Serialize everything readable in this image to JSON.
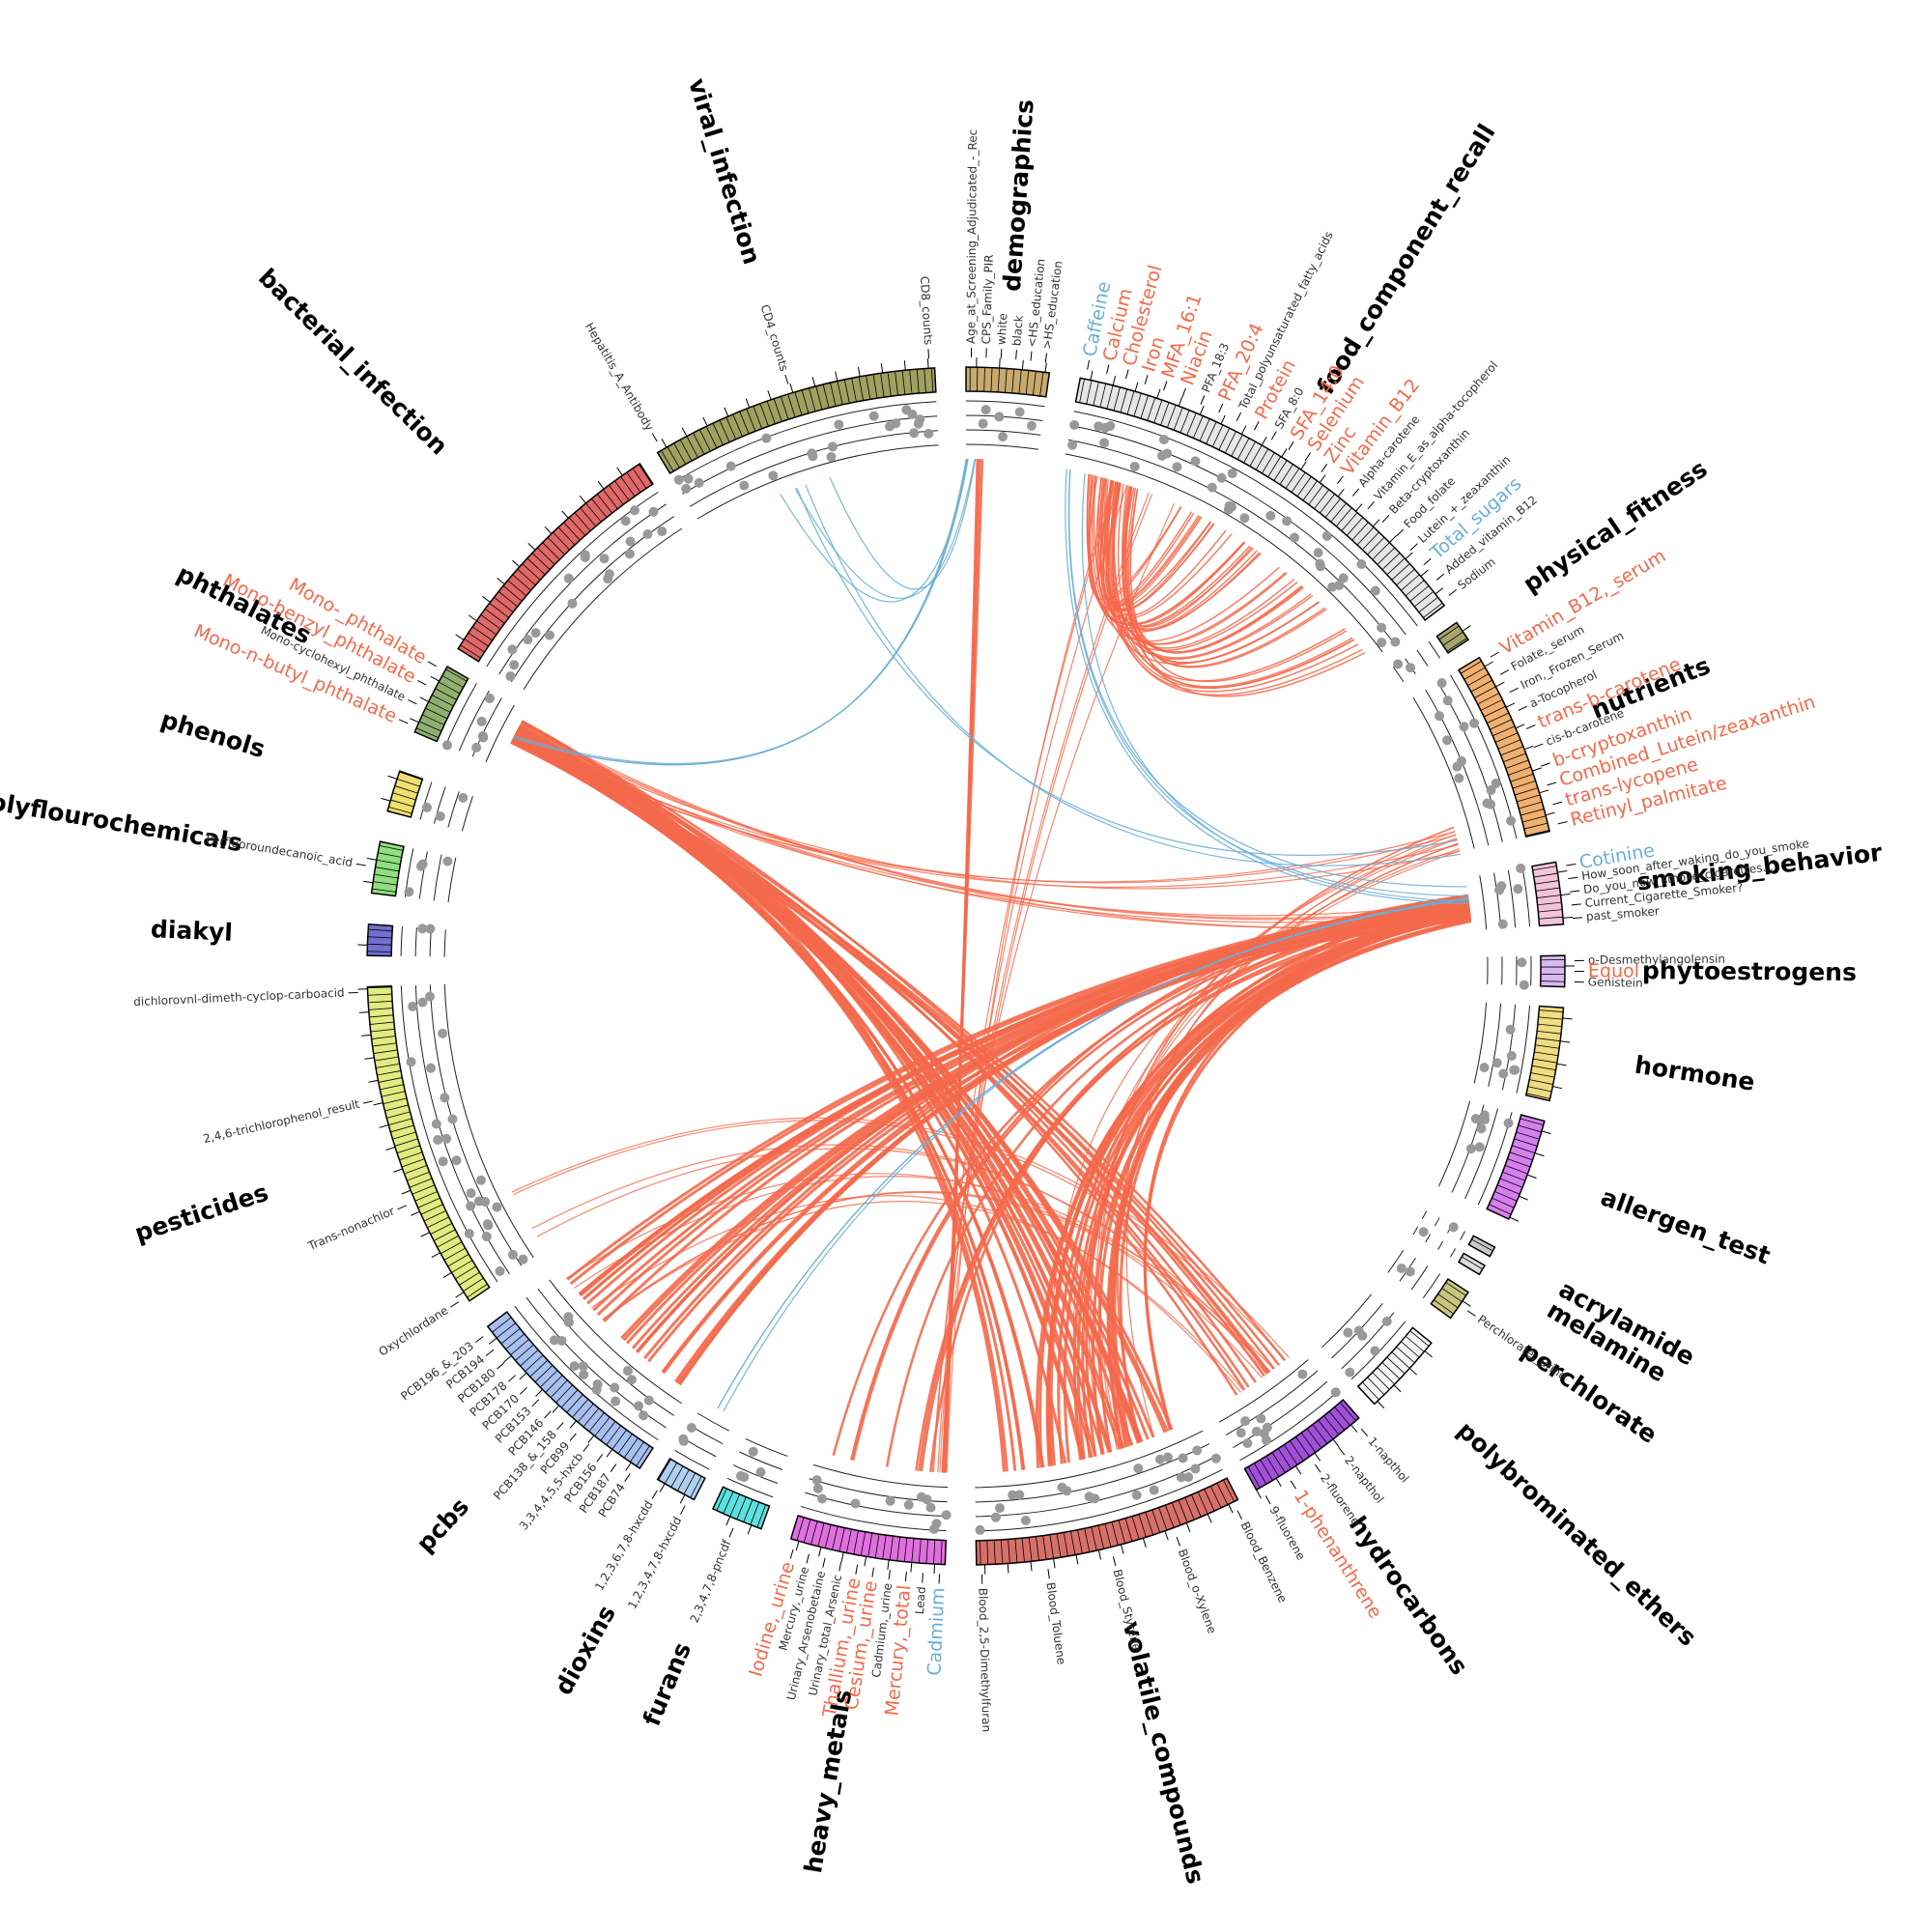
{
  "sectors": [
    {
      "name": "demographics",
      "color": "#c8a96e",
      "labels": [
        {
          "text": "Age_at_Screening_Adjudicated_-_Rec",
          "color": "#333333"
        },
        {
          "text": "CPS_Family_PIR",
          "color": "#333333"
        },
        {
          "text": "white",
          "color": "#333333"
        },
        {
          "text": "black",
          "color": "#333333"
        },
        {
          "text": "<HS_education",
          "color": "#333333"
        },
        {
          "text": ">HS_education",
          "color": "#333333"
        }
      ]
    },
    {
      "name": "food_component_recall",
      "color": "#e6e6e6",
      "labels": [
        {
          "text": "Caffeine",
          "color": "#6baed6"
        },
        {
          "text": "Calcium",
          "color": "#f4694b"
        },
        {
          "text": "Cholesterol",
          "color": "#f4694b"
        },
        {
          "text": "Iron",
          "color": "#f4694b"
        },
        {
          "text": "MFA_16:1",
          "color": "#f4694b"
        },
        {
          "text": "Niacin",
          "color": "#f4694b"
        },
        {
          "text": "PFA_18:3",
          "color": "#333333"
        },
        {
          "text": "PFA_20:4",
          "color": "#f4694b"
        },
        {
          "text": "Total_polyunsaturated_fatty_acids",
          "color": "#333333"
        },
        {
          "text": "Protein",
          "color": "#f4694b"
        },
        {
          "text": "SFA_8:0",
          "color": "#333333"
        },
        {
          "text": "SFA_14:0",
          "color": "#f4694b"
        },
        {
          "text": "Selenium",
          "color": "#f4694b"
        },
        {
          "text": "Zinc",
          "color": "#f4694b"
        },
        {
          "text": "Vitamin_B12",
          "color": "#f4694b"
        },
        {
          "text": "Alpha-carotene",
          "color": "#333333"
        },
        {
          "text": "Vitamin_E_as_alpha-tocopherol",
          "color": "#333333"
        },
        {
          "text": "Beta-cryptoxanthin",
          "color": "#333333"
        },
        {
          "text": "Food_folate",
          "color": "#333333"
        },
        {
          "text": "Lutein_+_zeaxanthin",
          "color": "#333333"
        },
        {
          "text": "Total_sugars",
          "color": "#6baed6"
        },
        {
          "text": "Added_vitamin_B12",
          "color": "#333333"
        },
        {
          "text": "Sodium",
          "color": "#333333"
        }
      ]
    },
    {
      "name": "physical_fitness",
      "color": "#a7a56b",
      "labels": []
    },
    {
      "name": "nutrients",
      "color": "#f0b070",
      "labels": [
        {
          "text": "Vitamin_B12,_serum",
          "color": "#f4694b"
        },
        {
          "text": "Folate,_serum",
          "color": "#333333"
        },
        {
          "text": "Iron,_Frozen_Serum",
          "color": "#333333"
        },
        {
          "text": "a-Tocopherol",
          "color": "#333333"
        },
        {
          "text": "trans-b-carotene",
          "color": "#f4694b"
        },
        {
          "text": "cis-b-carotene",
          "color": "#333333"
        },
        {
          "text": "b-cryptoxanthin",
          "color": "#f4694b"
        },
        {
          "text": "Combined_Lutein/zeaxanthin",
          "color": "#f4694b"
        },
        {
          "text": "trans-lycopene",
          "color": "#f4694b"
        },
        {
          "text": "Retinyl_palmitate",
          "color": "#f4694b"
        }
      ]
    },
    {
      "name": "smoking_behavior",
      "color": "#f3c4d8",
      "labels": [
        {
          "text": "Cotinine",
          "color": "#6baed6"
        },
        {
          "text": "How_soon_after_waking_do_you_smoke",
          "color": "#333333"
        },
        {
          "text": "Do_you_now_smoke_cigarettes...",
          "color": "#333333"
        },
        {
          "text": "Current_Cigarette_Smoker?",
          "color": "#333333"
        },
        {
          "text": "past_smoker",
          "color": "#333333"
        }
      ]
    },
    {
      "name": "phytoestrogens",
      "color": "#d8b8ef",
      "labels": [
        {
          "text": "o-Desmethylangolensin",
          "color": "#333333"
        },
        {
          "text": "Equol",
          "color": "#f4694b"
        },
        {
          "text": "Genistein",
          "color": "#333333"
        }
      ]
    },
    {
      "name": "hormone",
      "color": "#f0dc82",
      "labels": []
    },
    {
      "name": "allergen_test",
      "color": "#d680f0",
      "labels": []
    },
    {
      "name": "acrylamide",
      "color": "#c8c8c8",
      "labels": []
    },
    {
      "name": "melamine",
      "color": "#dcdcdc",
      "labels": []
    },
    {
      "name": "perchlorate",
      "color": "#c8c680",
      "labels": [
        {
          "text": "Perchlorate,_urine",
          "color": "#333333"
        }
      ]
    },
    {
      "name": "polybrominated_ethers",
      "color": "#f5f5f5",
      "labels": []
    },
    {
      "name": "hydrocarbons",
      "color": "#a050d8",
      "labels": [
        {
          "text": "1-napthol",
          "color": "#333333"
        },
        {
          "text": "2-napthol",
          "color": "#333333"
        },
        {
          "text": "2-fluorene",
          "color": "#333333"
        },
        {
          "text": "1-phenanthrene",
          "color": "#f4694b"
        },
        {
          "text": "9-fluorene",
          "color": "#333333"
        }
      ]
    },
    {
      "name": "volatile_compounds",
      "color": "#d8706a",
      "labels": [
        {
          "text": "Blood_Benzene",
          "color": "#333333"
        },
        {
          "text": "Blood_o-Xylene",
          "color": "#333333"
        },
        {
          "text": "Blood_Styrene",
          "color": "#333333"
        },
        {
          "text": "Blood_Toluene",
          "color": "#333333"
        },
        {
          "text": "Blood_2,5-Dimethylfuran",
          "color": "#333333"
        }
      ]
    },
    {
      "name": "heavy_metals",
      "color": "#e070e0",
      "labels": [
        {
          "text": "Cadmium",
          "color": "#6baed6"
        },
        {
          "text": "Lead",
          "color": "#333333"
        },
        {
          "text": "Mercury,_total",
          "color": "#f4694b"
        },
        {
          "text": "Cadmium,_urine",
          "color": "#333333"
        },
        {
          "text": "Cesium,_urine",
          "color": "#f4694b"
        },
        {
          "text": "Thallium,_urine",
          "color": "#f4694b"
        },
        {
          "text": "Urinary_total_Arsenic",
          "color": "#333333"
        },
        {
          "text": "Urinary_Arsenobetaine",
          "color": "#333333"
        },
        {
          "text": "Mercury,_urine",
          "color": "#333333"
        },
        {
          "text": "Iodine,_urine",
          "color": "#f4694b"
        }
      ]
    },
    {
      "name": "furans",
      "color": "#5ee0e0",
      "labels": [
        {
          "text": "2,3,4,7,8-pncdf",
          "color": "#333333"
        }
      ]
    },
    {
      "name": "dioxins",
      "color": "#b0d0f0",
      "labels": [
        {
          "text": "1,2,3,4,7,8-hxcdd",
          "color": "#333333"
        },
        {
          "text": "1,2,3,6,7,8-hxcdd",
          "color": "#333333"
        }
      ]
    },
    {
      "name": "pcbs",
      "color": "#a8c0f0",
      "labels": [
        {
          "text": "PCB74",
          "color": "#333333"
        },
        {
          "text": "PCB187",
          "color": "#333333"
        },
        {
          "text": "PCB156",
          "color": "#333333"
        },
        {
          "text": "3,3,4,4,5,5-hxcb",
          "color": "#333333"
        },
        {
          "text": "PCB99",
          "color": "#333333"
        },
        {
          "text": "PCB138_&_158",
          "color": "#333333"
        },
        {
          "text": "PCB146",
          "color": "#333333"
        },
        {
          "text": "PCB153",
          "color": "#333333"
        },
        {
          "text": "PCB170",
          "color": "#333333"
        },
        {
          "text": "PCB178",
          "color": "#333333"
        },
        {
          "text": "PCB180",
          "color": "#333333"
        },
        {
          "text": "PCB194",
          "color": "#333333"
        },
        {
          "text": "PCB196_&_203",
          "color": "#333333"
        }
      ]
    },
    {
      "name": "pesticides",
      "color": "#e0ec80",
      "labels": [
        {
          "text": "Oxychlordane",
          "color": "#333333"
        },
        {
          "text": "Trans-nonachlor",
          "color": "#333333"
        },
        {
          "text": "2,4,6-trichlorophenol_result",
          "color": "#333333"
        },
        {
          "text": "dichlorovnl-dimeth-cyclop-carboacid",
          "color": "#333333"
        }
      ]
    },
    {
      "name": "diakyl",
      "color": "#7070d0",
      "labels": []
    },
    {
      "name": "polyflourochemicals",
      "color": "#90e080",
      "labels": [
        {
          "text": "Perfluoroundecanoic_acid",
          "color": "#333333"
        }
      ]
    },
    {
      "name": "phenols",
      "color": "#f0e070",
      "labels": []
    },
    {
      "name": "phthalates",
      "color": "#90b070",
      "labels": [
        {
          "text": "Mono-n-butyl_phthalate",
          "color": "#f4694b"
        },
        {
          "text": "Mono-cyclohexyl_phthalate",
          "color": "#333333"
        },
        {
          "text": "Mono-benzyl_phthalate",
          "color": "#f4694b"
        },
        {
          "text": "Mono-_phthalate",
          "color": "#f4694b"
        }
      ]
    },
    {
      "name": "bacterial_infection",
      "color": "#e06868",
      "labels": []
    },
    {
      "name": "viral_infection",
      "color": "#a0a060",
      "labels": [
        {
          "text": "Hepatitis_A_Antibody",
          "color": "#333333"
        },
        {
          "text": "CD4_counts",
          "color": "#333333"
        },
        {
          "text": "CD8_counts",
          "color": "#333333"
        }
      ]
    }
  ]
}
